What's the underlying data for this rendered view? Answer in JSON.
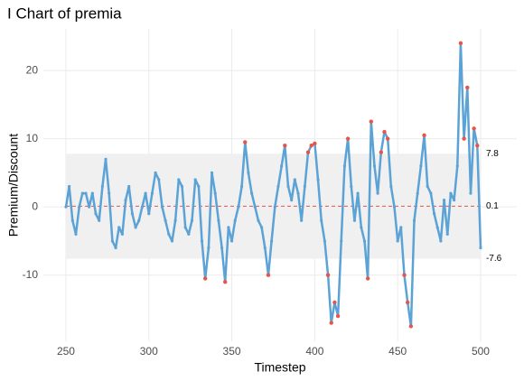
{
  "chart_data": {
    "type": "ichart",
    "title": "I Chart of premia",
    "x_label": "Timestep",
    "y_label": "Premium/Discount",
    "xlim": [
      236.4,
      521.8
    ],
    "ylim": [
      -19.7,
      26.1
    ],
    "xticks": [
      250,
      300,
      350,
      400,
      450,
      500
    ],
    "yticks": [
      -10,
      0,
      10,
      20
    ],
    "grid": true,
    "limits": {
      "ucl": 7.8,
      "cl": 0.1,
      "lcl": -7.6
    },
    "band_color": "#f0f0f0",
    "center_color": "#e8534a",
    "series": [
      {
        "color": "#5ba3d6",
        "out_color": "#e8534a",
        "x": [
          250,
          252,
          254,
          256,
          258,
          260,
          262,
          264,
          266,
          268,
          270,
          272,
          274,
          276,
          278,
          280,
          282,
          284,
          286,
          288,
          290,
          292,
          294,
          296,
          298,
          300,
          302,
          304,
          306,
          308,
          310,
          312,
          314,
          316,
          318,
          320,
          322,
          324,
          326,
          328,
          330,
          332,
          334,
          336,
          338,
          340,
          342,
          344,
          346,
          348,
          350,
          352,
          354,
          356,
          358,
          360,
          362,
          364,
          366,
          368,
          370,
          372,
          374,
          376,
          378,
          380,
          382,
          384,
          386,
          388,
          390,
          392,
          394,
          396,
          398,
          400,
          402,
          404,
          406,
          408,
          410,
          412,
          414,
          416,
          418,
          420,
          422,
          424,
          426,
          428,
          430,
          432,
          434,
          436,
          438,
          440,
          442,
          444,
          446,
          448,
          450,
          452,
          454,
          456,
          458,
          460,
          462,
          464,
          466,
          468,
          470,
          472,
          474,
          476,
          478,
          480,
          482,
          484,
          486,
          488,
          490,
          492,
          494,
          496,
          498,
          500
        ],
        "values": [
          0,
          3,
          -2,
          -4,
          0,
          2,
          2,
          0,
          2,
          -1,
          -2,
          3,
          7,
          2,
          -5,
          -6,
          -3,
          -4,
          1,
          3,
          -1,
          -3,
          -2,
          0,
          2,
          -1,
          2,
          5,
          4,
          0,
          -2,
          -4,
          -5,
          -2,
          4,
          3,
          -3,
          -4,
          -2,
          4,
          3,
          -5,
          -10.5,
          -6,
          5,
          2,
          -2,
          -6,
          -11,
          -3,
          -5,
          -2,
          0,
          3,
          9.5,
          5,
          2,
          0,
          -2,
          -3,
          -6,
          -10,
          -5,
          0,
          3,
          6,
          9,
          3,
          1,
          4,
          2,
          -2,
          3,
          8,
          9,
          9.3,
          4,
          -2,
          -5,
          -10,
          -17,
          -14,
          -16,
          -5,
          6,
          10,
          3,
          -2,
          2,
          -3,
          -5,
          -10.5,
          12.5,
          6,
          2,
          8,
          11,
          10,
          3,
          0,
          -5,
          -3,
          -10,
          -14,
          -17.5,
          -2,
          2,
          6,
          10.5,
          3,
          2,
          -1,
          -3,
          -5,
          1,
          -4,
          2,
          1,
          6,
          24,
          10,
          17.5,
          2,
          11.5,
          9,
          -6
        ]
      }
    ]
  }
}
